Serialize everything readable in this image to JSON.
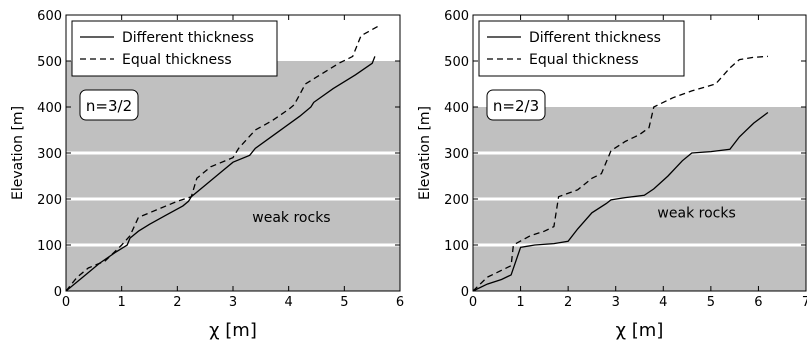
{
  "chart_data": [
    {
      "type": "line",
      "xlabel": "χ [m]",
      "ylabel": "Elevation [m]",
      "xlim": [
        0,
        6
      ],
      "ylim": [
        0,
        600
      ],
      "xticks": [
        0,
        1,
        2,
        3,
        4,
        5,
        6
      ],
      "yticks": [
        0,
        100,
        200,
        300,
        400,
        500,
        600
      ],
      "shaded_band": {
        "from": 0,
        "to": 500,
        "color": "#c0c0c0"
      },
      "horizontal_gridlines": [
        100,
        200,
        300
      ],
      "annotation": "n=3/2",
      "region_label": "weak rocks",
      "legend": {
        "placement": "top-left",
        "entries": [
          "Different thickness",
          "Equal thickness"
        ]
      },
      "series": [
        {
          "name": "Different thickness",
          "style": "solid",
          "x": [
            0,
            0.3,
            0.6,
            0.9,
            1.1,
            1.15,
            1.3,
            1.5,
            1.8,
            2.1,
            2.2,
            2.25,
            2.5,
            2.8,
            3.0,
            3.3,
            3.4,
            3.8,
            4.2,
            4.4,
            4.45,
            4.8,
            5.2,
            5.5,
            5.55
          ],
          "y": [
            0,
            30,
            60,
            85,
            100,
            115,
            130,
            145,
            165,
            185,
            195,
            205,
            230,
            260,
            280,
            295,
            310,
            345,
            380,
            400,
            410,
            440,
            470,
            495,
            510
          ]
        },
        {
          "name": "Equal thickness",
          "style": "dashed",
          "x": [
            0,
            0.2,
            0.4,
            0.7,
            1.0,
            1.15,
            1.3,
            1.5,
            2.0,
            2.25,
            2.35,
            2.6,
            3.0,
            3.1,
            3.4,
            3.7,
            4.0,
            4.1,
            4.3,
            4.5,
            4.9,
            5.15,
            5.3,
            5.6
          ],
          "y": [
            0,
            30,
            50,
            65,
            100,
            120,
            160,
            170,
            195,
            205,
            245,
            270,
            290,
            310,
            350,
            370,
            395,
            405,
            450,
            465,
            495,
            510,
            555,
            575
          ]
        }
      ]
    },
    {
      "type": "line",
      "xlabel": "χ [m]",
      "ylabel": "Elevation [m]",
      "xlim": [
        0,
        7
      ],
      "ylim": [
        0,
        600
      ],
      "xticks": [
        0,
        1,
        2,
        3,
        4,
        5,
        6,
        7
      ],
      "yticks": [
        0,
        100,
        200,
        300,
        400,
        500,
        600
      ],
      "shaded_band": {
        "from": 0,
        "to": 400,
        "color": "#c0c0c0"
      },
      "horizontal_gridlines": [
        100,
        200,
        300
      ],
      "annotation": "n=2/3",
      "region_label": "weak rocks",
      "legend": {
        "placement": "top-left",
        "entries": [
          "Different thickness",
          "Equal thickness"
        ]
      },
      "series": [
        {
          "name": "Different thickness",
          "style": "solid",
          "x": [
            0,
            0.3,
            0.6,
            0.8,
            1.0,
            1.3,
            1.7,
            2.0,
            2.2,
            2.5,
            2.8,
            2.9,
            3.2,
            3.6,
            3.8,
            4.1,
            4.4,
            4.6,
            5.0,
            5.4,
            5.6,
            5.9,
            6.2
          ],
          "y": [
            0,
            15,
            25,
            35,
            95,
            100,
            103,
            108,
            135,
            170,
            190,
            198,
            203,
            208,
            222,
            250,
            283,
            300,
            303,
            308,
            335,
            365,
            388
          ]
        },
        {
          "name": "Equal thickness",
          "style": "dashed",
          "x": [
            0,
            0.3,
            0.6,
            0.8,
            0.85,
            1.2,
            1.5,
            1.7,
            1.8,
            2.2,
            2.5,
            2.7,
            2.9,
            3.2,
            3.5,
            3.7,
            3.8,
            4.2,
            4.6,
            5.1,
            5.4,
            5.6,
            5.9,
            6.2
          ],
          "y": [
            0,
            30,
            45,
            55,
            100,
            120,
            130,
            140,
            205,
            220,
            245,
            255,
            305,
            325,
            340,
            355,
            400,
            420,
            435,
            450,
            485,
            503,
            508,
            510
          ]
        }
      ]
    }
  ]
}
